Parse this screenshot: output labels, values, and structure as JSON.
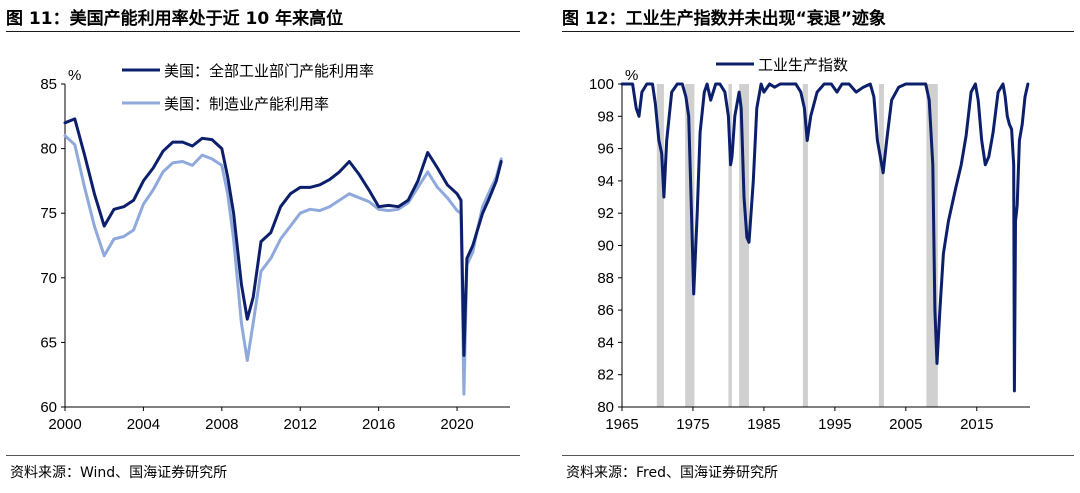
{
  "left": {
    "title": "图 11：美国产能利用率处于近 10 年来高位",
    "source": "资料来源：Wind、国海证券研究所"
  },
  "right": {
    "title": "图 12：工业生产指数并未出现“衰退”迹象",
    "source": "资料来源：Fred、国海证券研究所"
  },
  "colors": {
    "navy": "#0c1f6b",
    "light_blue": "#8fa9dc",
    "recession_grey": "#d0d0d0"
  },
  "chart_data": [
    {
      "type": "line",
      "unit_label": "%",
      "xlim": [
        2000,
        2022.7
      ],
      "ylim": [
        60,
        85
      ],
      "x_ticks": [
        "2000",
        "2004",
        "2008",
        "2012",
        "2016",
        "2020"
      ],
      "x_tick_values": [
        2000,
        2004,
        2008,
        2012,
        2016,
        2020
      ],
      "y_ticks": [
        "60",
        "65",
        "70",
        "75",
        "80",
        "85"
      ],
      "y_tick_values": [
        60,
        65,
        70,
        75,
        80,
        85
      ],
      "legend_position": "top-center",
      "series": [
        {
          "name": "美国：全部工业部门产能利用率",
          "color": "#0c1f6b",
          "x": [
            2000,
            2000.5,
            2001,
            2001.5,
            2002,
            2002.5,
            2003,
            2003.5,
            2004,
            2004.5,
            2005,
            2005.5,
            2006,
            2006.5,
            2007,
            2007.5,
            2008,
            2008.3,
            2008.6,
            2009,
            2009.3,
            2009.6,
            2010,
            2010.5,
            2011,
            2011.5,
            2012,
            2012.5,
            2013,
            2013.5,
            2014,
            2014.5,
            2015,
            2015.5,
            2016,
            2016.5,
            2017,
            2017.5,
            2018,
            2018.5,
            2019,
            2019.5,
            2020,
            2020.2,
            2020.35,
            2020.5,
            2020.8,
            2021,
            2021.3,
            2021.6,
            2022,
            2022.25
          ],
          "values": [
            82,
            82.3,
            79.5,
            76.5,
            74,
            75.3,
            75.5,
            76,
            77.5,
            78.5,
            79.8,
            80.5,
            80.5,
            80.2,
            80.8,
            80.7,
            80,
            77.8,
            75,
            69.5,
            66.8,
            68.5,
            72.8,
            73.5,
            75.5,
            76.5,
            77,
            77,
            77.2,
            77.6,
            78.2,
            79,
            78,
            76.8,
            75.5,
            75.6,
            75.5,
            76,
            77.5,
            79.7,
            78.5,
            77.2,
            76.5,
            76,
            64,
            71.5,
            72.5,
            73.5,
            75,
            76,
            77.5,
            79
          ]
        },
        {
          "name": "美国：制造业产能利用率",
          "color": "#8fa9dc",
          "x": [
            2000,
            2000.5,
            2001,
            2001.5,
            2002,
            2002.5,
            2003,
            2003.5,
            2004,
            2004.5,
            2005,
            2005.5,
            2006,
            2006.5,
            2007,
            2007.5,
            2008,
            2008.3,
            2008.6,
            2009,
            2009.3,
            2009.6,
            2010,
            2010.5,
            2011,
            2011.5,
            2012,
            2012.5,
            2013,
            2013.5,
            2014,
            2014.5,
            2015,
            2015.5,
            2016,
            2016.5,
            2017,
            2017.5,
            2018,
            2018.5,
            2019,
            2019.5,
            2020,
            2020.2,
            2020.35,
            2020.5,
            2020.8,
            2021,
            2021.3,
            2021.6,
            2022,
            2022.25
          ],
          "values": [
            81,
            80.3,
            77,
            74,
            71.7,
            73,
            73.2,
            73.7,
            75.7,
            76.8,
            78.2,
            78.9,
            79,
            78.7,
            79.5,
            79.2,
            78.7,
            76.5,
            73,
            66.5,
            63.6,
            66.5,
            70.5,
            71.5,
            73,
            74,
            75,
            75.3,
            75.2,
            75.5,
            76,
            76.5,
            76.2,
            75.9,
            75.3,
            75.2,
            75.3,
            75.8,
            77,
            78.2,
            77,
            76.2,
            75.2,
            75,
            61,
            71,
            72,
            73.5,
            75.5,
            76.5,
            77.8,
            79.2
          ]
        }
      ]
    },
    {
      "type": "line",
      "unit_label": "%",
      "xlim": [
        1965,
        2022.5
      ],
      "ylim": [
        80,
        100
      ],
      "x_ticks": [
        "1965",
        "1975",
        "1985",
        "1995",
        "2005",
        "2015"
      ],
      "x_tick_values": [
        1965,
        1975,
        1985,
        1995,
        2005,
        2015
      ],
      "y_ticks": [
        "80",
        "82",
        "84",
        "86",
        "88",
        "90",
        "92",
        "94",
        "96",
        "98",
        "100"
      ],
      "y_tick_values": [
        80,
        82,
        84,
        86,
        88,
        90,
        92,
        94,
        96,
        98,
        100
      ],
      "legend_position": "top-center",
      "recession_bands": [
        [
          1969.9,
          1970.9
        ],
        [
          1973.9,
          1975.2
        ],
        [
          1980.0,
          1980.5
        ],
        [
          1981.5,
          1982.9
        ],
        [
          1990.5,
          1991.2
        ],
        [
          2001.2,
          2001.9
        ],
        [
          2007.9,
          2009.5
        ]
      ],
      "series": [
        {
          "name": "工业生产指数",
          "color": "#0c1f6b",
          "x": [
            1965,
            1966.5,
            1967,
            1967.4,
            1967.8,
            1968.5,
            1969.3,
            1969.7,
            1970.2,
            1970.6,
            1970.9,
            1971.3,
            1972,
            1972.8,
            1973.5,
            1974,
            1974.4,
            1974.8,
            1975.1,
            1975.6,
            1976,
            1976.6,
            1977,
            1977.5,
            1978.2,
            1978.8,
            1979.5,
            1980,
            1980.3,
            1980.5,
            1980.9,
            1981.5,
            1981.8,
            1982.2,
            1982.6,
            1982.9,
            1983.5,
            1984,
            1984.6,
            1985,
            1985.8,
            1986.5,
            1987.3,
            1988.5,
            1989.5,
            1990.2,
            1990.7,
            1991.1,
            1991.6,
            1992.5,
            1993.5,
            1994.5,
            1995.3,
            1996,
            1997,
            1998,
            1999,
            2000,
            2000.5,
            2001,
            2001.4,
            2001.8,
            2002.3,
            2003,
            2004,
            2005,
            2006,
            2007,
            2007.8,
            2008.3,
            2008.8,
            2009.1,
            2009.4,
            2009.8,
            2010.3,
            2011,
            2012,
            2012.8,
            2013.5,
            2014.2,
            2014.8,
            2015.2,
            2015.7,
            2016.2,
            2016.7,
            2017.3,
            2018,
            2018.7,
            2019,
            2019.3,
            2019.6,
            2019.9,
            2020.2,
            2020.3,
            2020.45,
            2020.7,
            2021,
            2021.4,
            2021.8,
            2022.2
          ],
          "values": [
            100,
            100,
            98.5,
            98,
            99.5,
            100,
            100,
            98.8,
            96.5,
            95.7,
            93,
            96.5,
            99.5,
            100,
            100,
            99.2,
            98,
            92,
            87,
            92,
            97,
            99.5,
            100,
            99,
            100,
            100,
            99.5,
            98,
            95,
            95.5,
            98,
            99.5,
            98.5,
            93,
            90.5,
            90.2,
            94,
            98.5,
            100,
            99.5,
            100,
            99.8,
            100,
            100,
            100,
            99.5,
            98.5,
            96.5,
            98,
            99.5,
            100,
            100,
            99.5,
            100,
            100,
            99.5,
            99.8,
            100,
            99.2,
            96.5,
            95.5,
            94.5,
            96.5,
            99,
            99.8,
            100,
            100,
            100,
            100,
            99,
            95,
            86,
            82.7,
            86,
            89.5,
            91.5,
            93.5,
            95,
            96.8,
            99.5,
            100,
            99,
            96.5,
            95,
            95.5,
            97,
            99.5,
            100,
            99.2,
            98,
            97.5,
            97.2,
            95,
            81,
            91.5,
            92.5,
            96.5,
            97.5,
            99.2,
            100
          ]
        }
      ]
    }
  ]
}
